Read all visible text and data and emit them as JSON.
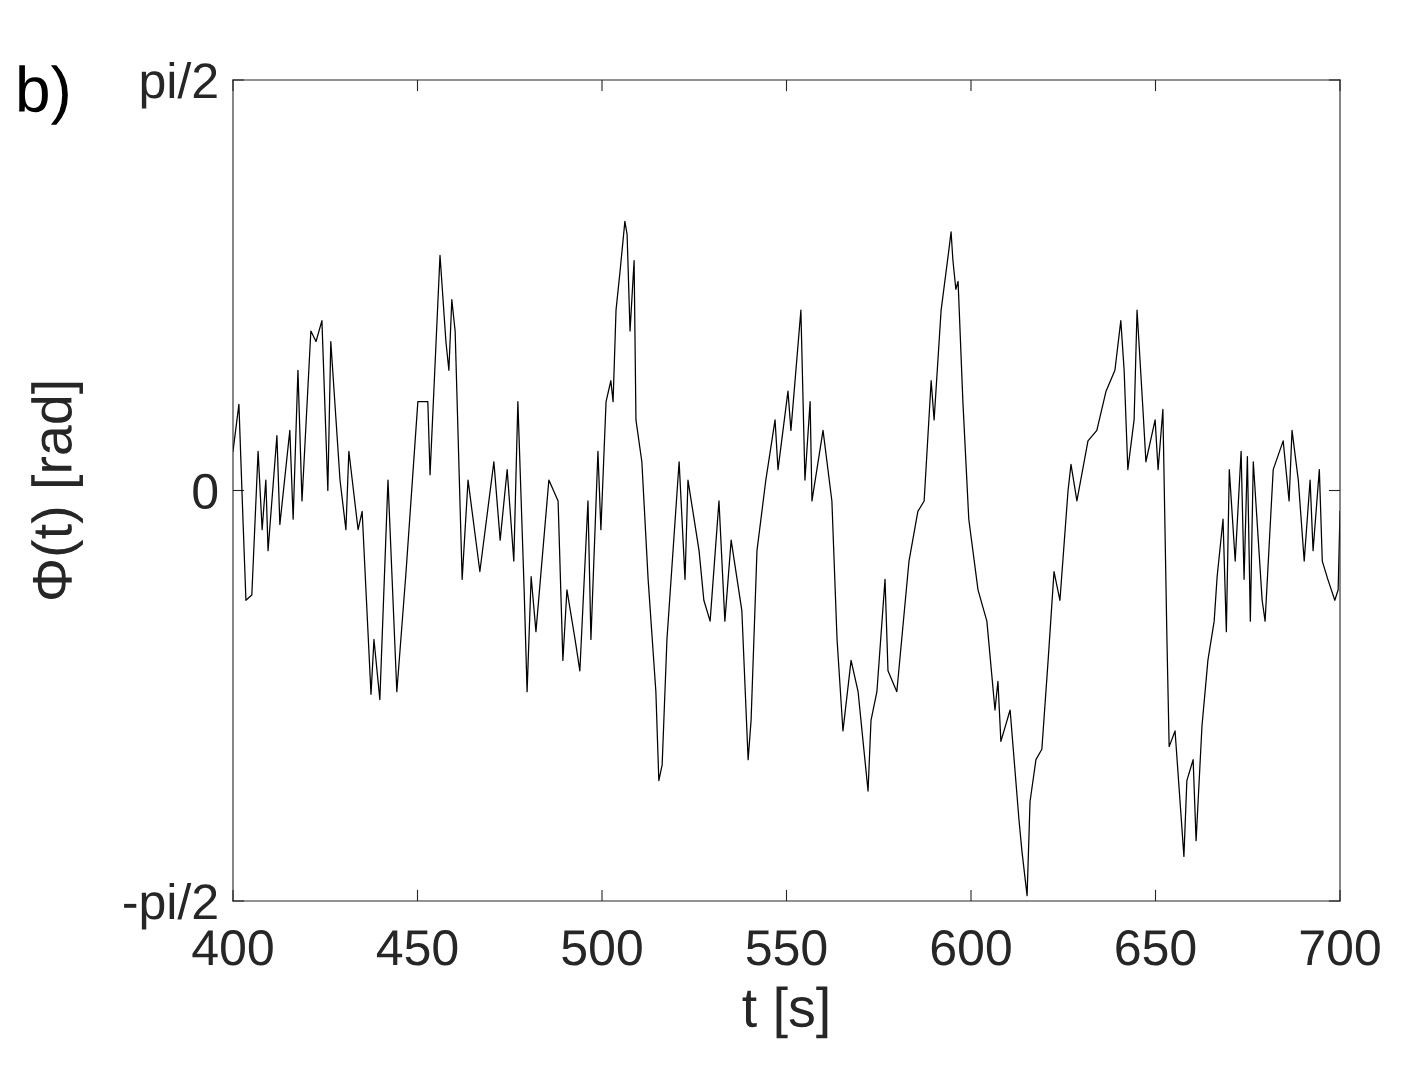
{
  "chart_data": {
    "type": "line",
    "title": "b)",
    "xlabel": "t [s]",
    "ylabel": "Φ(t) [rad]",
    "xlim": [
      400,
      700
    ],
    "xticks": [
      400,
      450,
      500,
      550,
      600,
      650,
      700
    ],
    "ylim": [
      -1.5708,
      1.5708
    ],
    "yticks": [
      {
        "value": -1.5708,
        "label": "-pi/2"
      },
      0,
      {
        "value": 1.5708,
        "label": "pi/2"
      }
    ],
    "grid": false,
    "legend": false,
    "marker": "none",
    "line_style": "solid",
    "series": [
      {
        "color": "#000000",
        "x": [
          400,
          401.6,
          402.7,
          403.5,
          405.1,
          406.8,
          407.9,
          408.9,
          409.5,
          411.9,
          412.7,
          415.4,
          416.3,
          417.6,
          418.7,
          421.1,
          422.5,
          424.1,
          425.7,
          426.5,
          429.0,
          430.6,
          431.4,
          433.9,
          435.0,
          437.4,
          438.2,
          439.8,
          442.0,
          444.4,
          446.9,
          450.1,
          452.8,
          453.4,
          456.1,
          457.7,
          458.5,
          459.3,
          460.2,
          462.1,
          463.7,
          466.9,
          470.7,
          472.4,
          474.3,
          476.1,
          477.2,
          478.9,
          479.7,
          480.8,
          482.1,
          485.6,
          488.1,
          489.4,
          490.5,
          492.7,
          494.0,
          496.2,
          497.0,
          498.9,
          499.7,
          501.1,
          502.4,
          503.0,
          503.8,
          504.9,
          506.2,
          506.8,
          507.6,
          508.7,
          509.2,
          510.8,
          512.5,
          514.6,
          515.4,
          516.3,
          517.6,
          520.9,
          522.5,
          523.3,
          526.3,
          527.6,
          529.3,
          531.7,
          533.3,
          535.0,
          537.9,
          539.6,
          540.4,
          542.0,
          544.4,
          546.9,
          547.7,
          550.4,
          551.2,
          553.9,
          555.0,
          556.4,
          556.9,
          559.9,
          562.3,
          563.7,
          565.3,
          567.5,
          569.4,
          572.1,
          572.9,
          574.5,
          576.7,
          577.5,
          579.9,
          583.2,
          585.6,
          587.3,
          589.2,
          590.0,
          591.9,
          594.0,
          594.6,
          595.1,
          595.9,
          596.5,
          597.8,
          599.4,
          601.9,
          604.3,
          606.5,
          607.3,
          608.1,
          610.6,
          613.0,
          613.8,
          615.2,
          616.0,
          617.6,
          619.2,
          620.9,
          622.5,
          624.1,
          626.3,
          627.1,
          628.7,
          631.7,
          634.1,
          636.6,
          639.0,
          640.6,
          641.5,
          642.5,
          644.2,
          645.0,
          646.6,
          647.4,
          649.9,
          650.7,
          652.0,
          653.1,
          653.7,
          655.3,
          657.7,
          658.5,
          660.2,
          661.0,
          662.6,
          664.2,
          665.9,
          666.7,
          668.3,
          669.2,
          670.0,
          671.6,
          673.2,
          674.0,
          674.9,
          675.7,
          676.5,
          678.9,
          679.7,
          681.9,
          684.6,
          686.2,
          687.0,
          688.7,
          690.3,
          691.9,
          692.7,
          694.4,
          695.2,
          696.7,
          698.6,
          699.5,
          700
        ],
        "values": [
          0.15,
          0.33,
          -0.11,
          -0.42,
          -0.4,
          0.15,
          -0.15,
          0.04,
          -0.23,
          0.21,
          -0.13,
          0.23,
          -0.11,
          0.46,
          -0.04,
          0.61,
          0.57,
          0.65,
          0.0,
          0.57,
          0.04,
          -0.15,
          0.15,
          -0.15,
          -0.08,
          -0.78,
          -0.57,
          -0.8,
          0.04,
          -0.77,
          -0.31,
          0.34,
          0.34,
          0.06,
          0.9,
          0.57,
          0.46,
          0.73,
          0.61,
          -0.34,
          0.04,
          -0.31,
          0.11,
          -0.19,
          0.08,
          -0.27,
          0.34,
          -0.38,
          -0.77,
          -0.33,
          -0.54,
          0.04,
          -0.04,
          -0.65,
          -0.38,
          -0.57,
          -0.69,
          -0.04,
          -0.57,
          0.15,
          -0.15,
          0.34,
          0.42,
          0.34,
          0.69,
          0.84,
          1.03,
          0.98,
          0.61,
          0.88,
          0.27,
          0.11,
          -0.34,
          -0.77,
          -1.11,
          -1.05,
          -0.57,
          0.11,
          -0.34,
          0.04,
          -0.23,
          -0.42,
          -0.5,
          -0.04,
          -0.5,
          -0.19,
          -0.46,
          -1.03,
          -0.88,
          -0.23,
          0.04,
          0.27,
          0.08,
          0.38,
          0.23,
          0.69,
          0.04,
          0.34,
          -0.04,
          0.23,
          -0.04,
          -0.57,
          -0.92,
          -0.65,
          -0.77,
          -1.15,
          -0.88,
          -0.77,
          -0.34,
          -0.69,
          -0.77,
          -0.27,
          -0.08,
          -0.04,
          0.42,
          0.27,
          0.69,
          0.92,
          0.99,
          0.88,
          0.77,
          0.8,
          0.34,
          -0.11,
          -0.38,
          -0.5,
          -0.84,
          -0.73,
          -0.96,
          -0.84,
          -1.26,
          -1.38,
          -1.55,
          -1.19,
          -1.03,
          -0.99,
          -0.65,
          -0.31,
          -0.42,
          0.0,
          0.1,
          -0.04,
          0.19,
          0.23,
          0.38,
          0.46,
          0.65,
          0.46,
          0.08,
          0.27,
          0.69,
          0.31,
          0.11,
          0.27,
          0.08,
          0.31,
          -0.57,
          -0.98,
          -0.92,
          -1.4,
          -1.11,
          -1.03,
          -1.34,
          -0.9,
          -0.65,
          -0.5,
          -0.33,
          -0.11,
          -0.54,
          0.08,
          -0.27,
          0.15,
          -0.34,
          0.13,
          -0.5,
          0.11,
          -0.42,
          -0.5,
          0.08,
          0.19,
          -0.04,
          0.23,
          0.04,
          -0.27,
          0.04,
          -0.23,
          0.08,
          -0.27,
          -0.34,
          -0.42,
          -0.38,
          -0.08
        ]
      }
    ]
  }
}
